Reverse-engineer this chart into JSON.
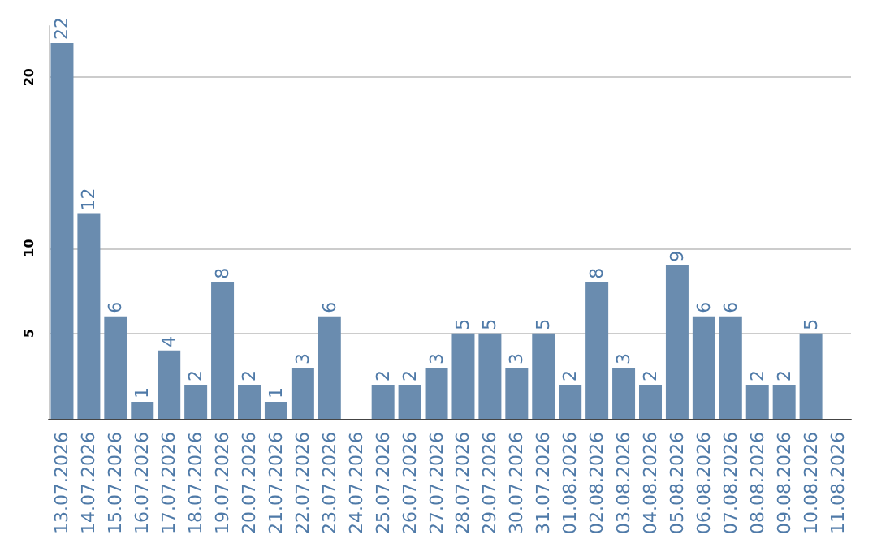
{
  "chart_data": {
    "type": "bar",
    "categories": [
      "13.07.2026",
      "14.07.2026",
      "15.07.2026",
      "16.07.2026",
      "17.07.2026",
      "18.07.2026",
      "19.07.2026",
      "20.07.2026",
      "21.07.2026",
      "22.07.2026",
      "23.07.2026",
      "24.07.2026",
      "25.07.2026",
      "26.07.2026",
      "27.07.2026",
      "28.07.2026",
      "29.07.2026",
      "30.07.2026",
      "31.07.2026",
      "01.08.2026",
      "02.08.2026",
      "03.08.2026",
      "04.08.2026",
      "05.08.2026",
      "06.08.2026",
      "07.08.2026",
      "08.08.2026",
      "09.08.2026",
      "10.08.2026",
      "11.08.2026"
    ],
    "values": [
      22,
      12,
      6,
      1,
      4,
      2,
      8,
      2,
      1,
      3,
      6,
      null,
      2,
      2,
      3,
      5,
      5,
      3,
      5,
      2,
      8,
      3,
      2,
      9,
      6,
      6,
      2,
      2,
      5,
      null
    ],
    "color": "#6a8caf",
    "ylim": [
      0,
      23
    ],
    "yticks": [
      5,
      10,
      20
    ],
    "grid": "y",
    "data_labels": true
  }
}
